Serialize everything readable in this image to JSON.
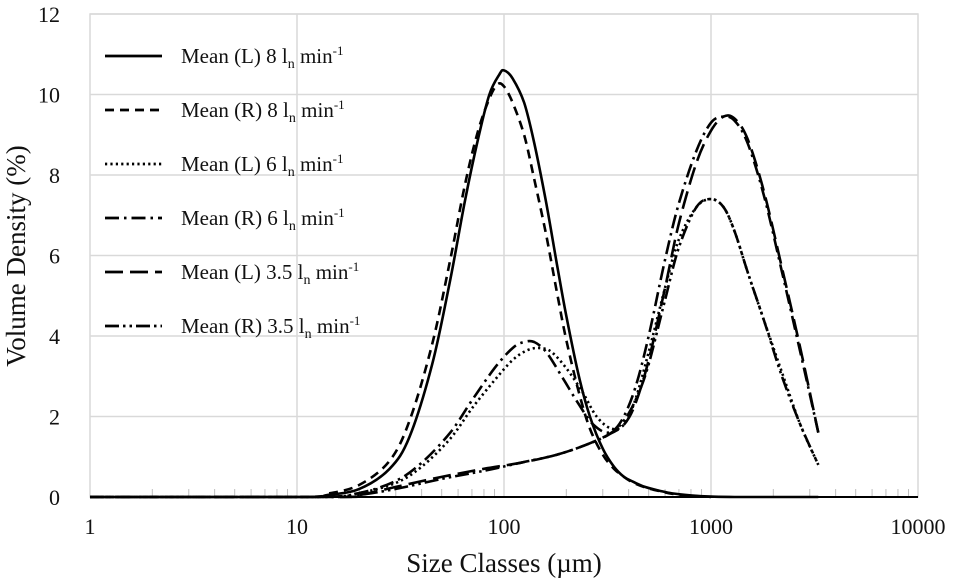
{
  "chart_data": {
    "type": "line",
    "title": "",
    "xlabel": "Size Classes (µm)",
    "ylabel": "Volume Density (%)",
    "xscale": "log",
    "xlim": [
      1,
      10000
    ],
    "ylim": [
      0,
      12
    ],
    "x_ticks": [
      "1",
      "10",
      "100",
      "1000",
      "10000"
    ],
    "x_tick_values": [
      1,
      10,
      100,
      1000,
      10000
    ],
    "y_ticks": [
      "0",
      "2",
      "4",
      "6",
      "8",
      "10",
      "12"
    ],
    "y_tick_values": [
      0,
      2,
      4,
      6,
      8,
      10,
      12
    ],
    "grid": true,
    "legend_position": "top-left",
    "series": [
      {
        "name": "Mean (L) 8 ln min-1",
        "label_main": "Mean (L) 8 l",
        "label_sub": "n",
        "label_mid": " min",
        "label_sup": "-1",
        "style": "solid",
        "x": [
          1,
          10,
          14,
          20,
          28,
          35,
          45,
          55,
          65,
          75,
          85,
          95,
          100,
          110,
          125,
          140,
          160,
          180,
          200,
          230,
          260,
          300,
          340,
          380,
          420,
          480,
          560,
          650,
          800,
          1000,
          1300,
          2000,
          3300
        ],
        "y": [
          0,
          0,
          0.05,
          0.2,
          0.7,
          1.5,
          3.3,
          5.4,
          7.4,
          8.9,
          10.0,
          10.5,
          10.6,
          10.4,
          9.8,
          8.8,
          7.3,
          5.8,
          4.5,
          3.0,
          2.0,
          1.2,
          0.75,
          0.5,
          0.38,
          0.25,
          0.16,
          0.09,
          0.04,
          0.01,
          0,
          0,
          0
        ]
      },
      {
        "name": "Mean (R) 8 ln min-1",
        "label_main": "Mean (R) 8 l",
        "label_sub": "n",
        "label_mid": " min",
        "label_sup": "-1",
        "style": "dashed",
        "x": [
          1,
          10,
          14,
          20,
          28,
          35,
          45,
          55,
          65,
          75,
          85,
          93,
          100,
          110,
          125,
          140,
          160,
          180,
          200,
          230,
          260,
          300,
          340,
          380,
          420,
          480,
          560,
          650,
          800,
          1000
        ],
        "y": [
          0,
          0,
          0.08,
          0.3,
          0.9,
          1.9,
          3.8,
          5.9,
          7.8,
          9.1,
          9.9,
          10.25,
          10.2,
          9.8,
          9.0,
          7.9,
          6.5,
          5.1,
          3.9,
          2.6,
          1.7,
          1.05,
          0.7,
          0.5,
          0.36,
          0.24,
          0.15,
          0.08,
          0.03,
          0
        ]
      },
      {
        "name": "Mean (L) 6 ln min-1",
        "label_main": "Mean (L) 6 l",
        "label_sub": "n",
        "label_mid": " min",
        "label_sup": "-1",
        "style": "dotted",
        "x": [
          1,
          12,
          20,
          30,
          40,
          55,
          70,
          90,
          110,
          130,
          150,
          170,
          200,
          240,
          280,
          330,
          380,
          430,
          500,
          600,
          700,
          850,
          1000,
          1150,
          1300,
          1500,
          1800,
          2200,
          2700,
          3300
        ],
        "y": [
          0,
          0,
          0.1,
          0.35,
          0.75,
          1.45,
          2.2,
          2.9,
          3.4,
          3.65,
          3.7,
          3.6,
          3.2,
          2.6,
          2.0,
          1.7,
          1.8,
          2.4,
          3.6,
          5.2,
          6.4,
          7.2,
          7.4,
          7.2,
          6.6,
          5.6,
          4.4,
          3.1,
          1.8,
          0.8
        ]
      },
      {
        "name": "Mean (R) 6 ln min-1",
        "label_main": "Mean (R) 6 l",
        "label_sub": "n",
        "label_mid": " min",
        "label_sup": "-1",
        "style": "dash-dot",
        "x": [
          1,
          12,
          20,
          30,
          40,
          55,
          70,
          90,
          110,
          125,
          140,
          160,
          190,
          230,
          270,
          320,
          370,
          430,
          500,
          600,
          700,
          850,
          1000,
          1150,
          1300,
          1500,
          1800,
          2200,
          2700,
          3300
        ],
        "y": [
          0,
          0,
          0.1,
          0.4,
          0.85,
          1.6,
          2.4,
          3.2,
          3.7,
          3.85,
          3.85,
          3.6,
          3.0,
          2.3,
          1.8,
          1.6,
          1.9,
          2.7,
          4.0,
          5.9,
          7.3,
          8.6,
          9.3,
          9.45,
          9.35,
          8.8,
          7.5,
          5.6,
          3.6,
          1.6
        ]
      },
      {
        "name": "Mean (L) 3.5 ln min-1",
        "label_main": "Mean (L) 3.5 l",
        "label_sub": "n",
        "label_mid": " min",
        "label_sup": "-1",
        "style": "long-dash",
        "x": [
          1,
          15,
          20,
          30,
          50,
          80,
          120,
          180,
          250,
          320,
          380,
          430,
          500,
          600,
          700,
          850,
          1000,
          1150,
          1300,
          1500,
          1800,
          2200,
          2700,
          3300
        ],
        "y": [
          0,
          0,
          0.05,
          0.25,
          0.5,
          0.7,
          0.85,
          1.05,
          1.3,
          1.55,
          1.8,
          2.3,
          3.4,
          5.2,
          6.8,
          8.3,
          9.1,
          9.45,
          9.4,
          8.9,
          7.6,
          5.7,
          3.7,
          1.6
        ]
      },
      {
        "name": "Mean (R) 3.5 ln min-1",
        "label_main": "Mean (R) 3.5 l",
        "label_sub": "n",
        "label_mid": " min",
        "label_sup": "-1",
        "style": "dash-dot-dot",
        "x": [
          1,
          15,
          20,
          30,
          50,
          80,
          120,
          180,
          250,
          320,
          380,
          440,
          500,
          600,
          700,
          850,
          1000,
          1150,
          1300,
          1500,
          1800,
          2200,
          2700,
          3300
        ],
        "y": [
          0,
          0,
          0.05,
          0.2,
          0.45,
          0.65,
          0.85,
          1.05,
          1.3,
          1.55,
          1.9,
          2.5,
          3.3,
          4.9,
          6.2,
          7.2,
          7.4,
          7.2,
          6.6,
          5.6,
          4.4,
          3.0,
          1.8,
          0.8
        ]
      }
    ]
  }
}
